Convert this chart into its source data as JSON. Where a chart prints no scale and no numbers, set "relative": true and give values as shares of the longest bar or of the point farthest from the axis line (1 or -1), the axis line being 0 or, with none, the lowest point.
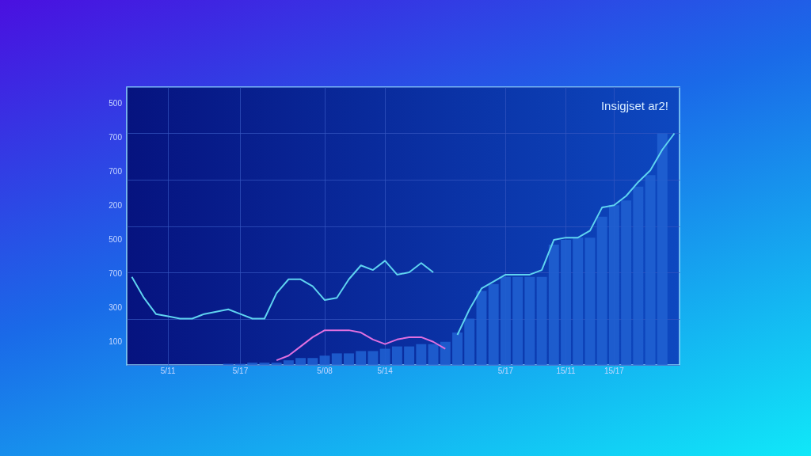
{
  "chart_data": {
    "type": "bar",
    "relative": true,
    "annotations": [
      "Insigjset ar2!",
      "500",
      "700",
      "700",
      "200",
      "500",
      "700",
      "300",
      "100"
    ],
    "categories": [
      null,
      null,
      null,
      "5/11",
      null,
      null,
      null,
      null,
      null,
      "5/17",
      null,
      null,
      null,
      null,
      null,
      null,
      "5/08",
      null,
      null,
      null,
      null,
      "5/14",
      null,
      null,
      null,
      null,
      null,
      null,
      null,
      null,
      null,
      "5/17",
      null,
      null,
      null,
      null,
      "15/11",
      null,
      null,
      null,
      "15/17",
      null,
      null,
      null,
      null,
      null
    ],
    "grid": true,
    "series": [
      {
        "color": "#1f5fd0",
        "values": [
          null,
          null,
          null,
          null,
          null,
          null,
          null,
          null,
          0.005,
          0.005,
          0.01,
          0.01,
          0.01,
          0.02,
          0.03,
          0.03,
          0.04,
          0.05,
          0.05,
          0.06,
          0.06,
          0.07,
          0.08,
          0.08,
          0.09,
          0.09,
          0.1,
          0.14,
          0.2,
          0.32,
          0.35,
          0.38,
          0.38,
          0.38,
          0.38,
          0.52,
          0.54,
          0.55,
          0.55,
          0.64,
          0.69,
          0.71,
          0.77,
          0.82,
          1.0,
          null
        ]
      },
      {
        "type": "line",
        "color": "#5fd3f0",
        "values": [
          0.38,
          0.29,
          0.22,
          0.21,
          0.2,
          0.2,
          0.22,
          0.23,
          0.24,
          0.22,
          0.2,
          0.2,
          0.31,
          0.37,
          0.37,
          0.34,
          0.28,
          0.29,
          0.37,
          0.43,
          0.41,
          0.45,
          0.39,
          0.4,
          0.44,
          0.4,
          null,
          0.13,
          0.24,
          0.33,
          0.36,
          0.39,
          0.39,
          0.39,
          0.41,
          0.54,
          0.55,
          0.55,
          0.58,
          0.68,
          0.69,
          0.73,
          0.79,
          0.84,
          0.93,
          1.0
        ]
      },
      {
        "type": "line",
        "color": "#e070e0",
        "values": [
          null,
          null,
          null,
          null,
          null,
          null,
          null,
          null,
          null,
          null,
          null,
          null,
          0.02,
          0.04,
          0.08,
          0.12,
          0.15,
          0.15,
          0.15,
          0.14,
          0.11,
          0.09,
          0.11,
          0.12,
          0.12,
          0.1,
          0.07,
          null,
          null,
          null,
          null,
          null,
          null,
          null,
          null,
          null,
          null,
          null,
          null,
          null,
          null,
          null,
          null,
          null,
          null,
          null
        ]
      }
    ]
  }
}
